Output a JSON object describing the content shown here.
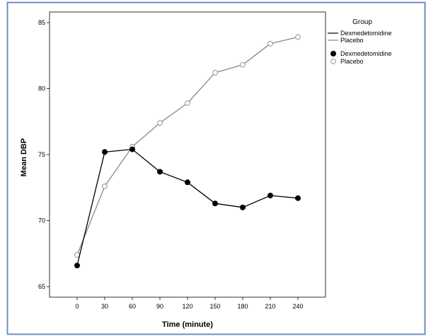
{
  "chart_data": {
    "type": "line",
    "title": "",
    "xlabel": "Time (minute)",
    "ylabel": "Mean DBP",
    "x": [
      0,
      30,
      60,
      90,
      120,
      150,
      180,
      210,
      240
    ],
    "xticks": [
      "0",
      "30",
      "60",
      "90",
      "120",
      "150",
      "180",
      "210",
      "240"
    ],
    "yticks": [
      65,
      70,
      75,
      80,
      85
    ],
    "xlim": [
      -30,
      270
    ],
    "ylim": [
      64.2,
      85.8
    ],
    "grid": false,
    "series": [
      {
        "name": "Dexmedetomidine",
        "color": "#000000",
        "marker": "filled-circle",
        "values": [
          66.6,
          75.2,
          75.4,
          73.7,
          72.9,
          71.3,
          71.0,
          71.9,
          71.7
        ]
      },
      {
        "name": "Placebo",
        "color": "#888888",
        "marker": "open-circle",
        "values": [
          67.4,
          72.6,
          75.6,
          77.4,
          78.9,
          81.2,
          81.8,
          83.4,
          83.9
        ]
      }
    ],
    "legend": {
      "title": "Group",
      "placement": "right",
      "line_entries": [
        "Dexmedetomidine",
        "Placebo"
      ],
      "marker_entries": [
        "Dexmedetomidine",
        "Placebo"
      ]
    }
  }
}
